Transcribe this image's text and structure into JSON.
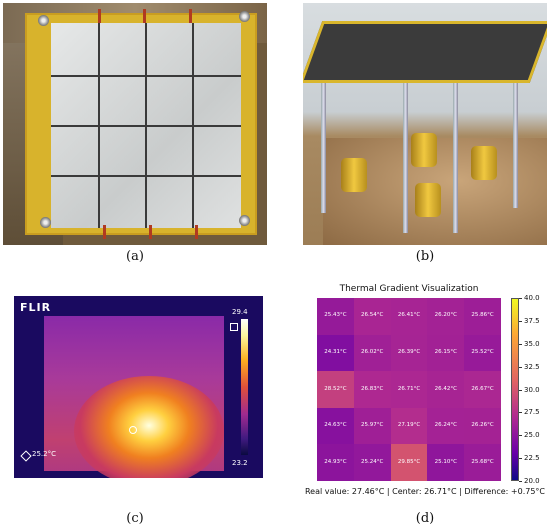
{
  "labels": {
    "a": "(a)",
    "b": "(b)",
    "c": "(c)",
    "d": "(d)"
  },
  "thermal_camera": {
    "brand": "FLIR",
    "scale_max": "29.4",
    "scale_min": "23.2",
    "spot_temp": "25.2°C"
  },
  "chart_data": {
    "type": "heatmap",
    "title": "Thermal Gradient Visualization",
    "rows": [
      [
        "25.43°C",
        "26.54°C",
        "26.41°C",
        "26.20°C",
        "25.86°C"
      ],
      [
        "24.31°C",
        "26.02°C",
        "26.39°C",
        "26.15°C",
        "25.52°C"
      ],
      [
        "28.52°C",
        "26.83°C",
        "26.71°C",
        "26.42°C",
        "26.67°C"
      ],
      [
        "24.63°C",
        "25.97°C",
        "27.19°C",
        "26.24°C",
        "26.26°C"
      ],
      [
        "24.93°C",
        "25.24°C",
        "29.85°C",
        "25.10°C",
        "25.68°C"
      ]
    ],
    "colorbar_ticks": [
      "40.0",
      "37.5",
      "35.0",
      "32.5",
      "30.0",
      "27.5",
      "25.0",
      "22.5",
      "20.0"
    ],
    "colorbar_range": [
      20.0,
      40.0
    ],
    "colormap": "plasma",
    "caption": "Real value: 27.46°C | Center: 26.71°C | Difference: +0.75°C"
  }
}
